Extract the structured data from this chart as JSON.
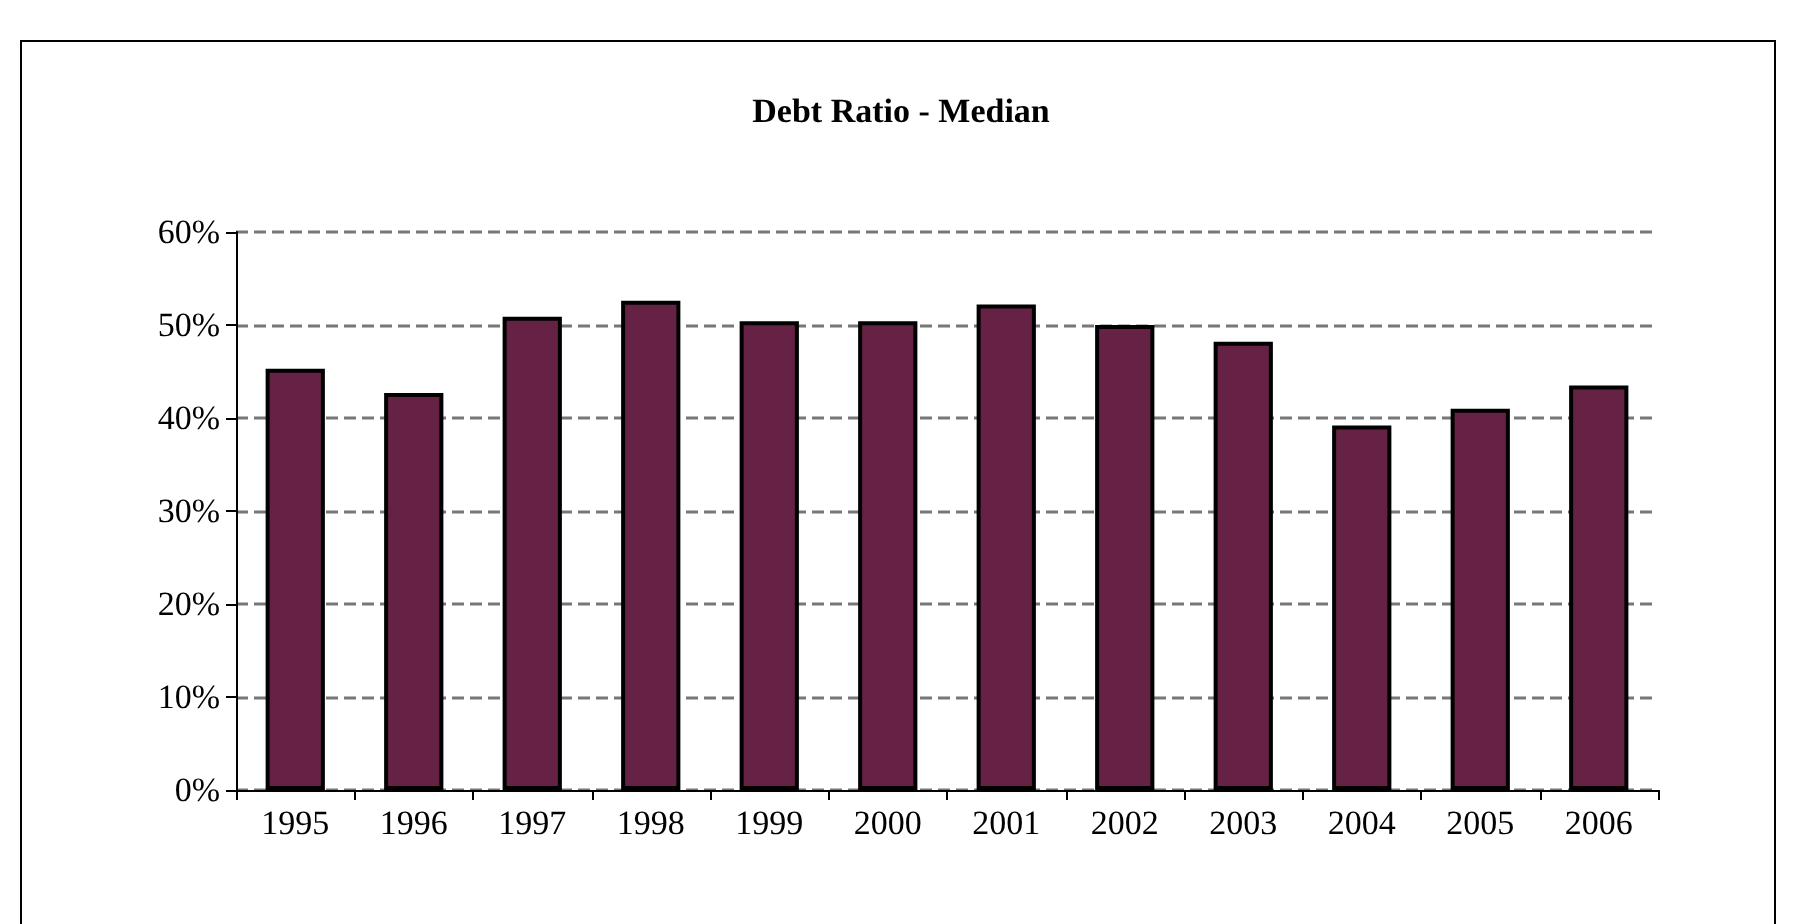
{
  "chart_data": {
    "type": "bar",
    "title": "Debt Ratio - Median",
    "categories": [
      "1995",
      "1996",
      "1997",
      "1998",
      "1999",
      "2000",
      "2001",
      "2002",
      "2003",
      "2004",
      "2005",
      "2006"
    ],
    "values": [
      45.3,
      42.7,
      50.9,
      52.6,
      50.4,
      50.4,
      52.2,
      50.0,
      48.2,
      39.2,
      41.0,
      43.5
    ],
    "color": "#662244",
    "ylim": [
      0,
      60
    ],
    "yticks": [
      {
        "value": 0,
        "label": "0%"
      },
      {
        "value": 10,
        "label": "10%"
      },
      {
        "value": 20,
        "label": "20%"
      },
      {
        "value": 30,
        "label": "30%"
      },
      {
        "value": 40,
        "label": "40%"
      },
      {
        "value": 50,
        "label": "50%"
      },
      {
        "value": 60,
        "label": "60%"
      }
    ],
    "grid": "y"
  }
}
